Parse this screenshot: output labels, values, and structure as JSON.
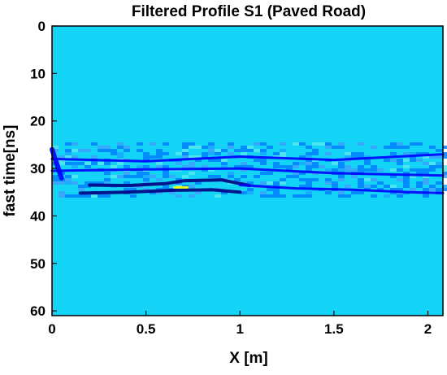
{
  "chart_data": {
    "type": "heatmap",
    "title": "Filtered Profile S1 (Paved Road)",
    "xlabel": "X [m]",
    "ylabel": "fast time[ns]",
    "xlim": [
      0,
      2.08
    ],
    "ylim": [
      61,
      0
    ],
    "y_reversed": true,
    "xticks": [
      0,
      0.5,
      1,
      1.5,
      2
    ],
    "xtick_labels": [
      "0",
      "0.5",
      "1",
      "1.5",
      "2"
    ],
    "yticks": [
      0,
      10,
      20,
      30,
      40,
      50,
      60
    ],
    "ytick_labels": [
      "0",
      "10",
      "20",
      "30",
      "40",
      "50",
      "60"
    ],
    "grid": false,
    "colormap": "jet",
    "background_value_color": "#13d4f7",
    "colorscale": [
      "#00007f",
      "#0000ff",
      "#007fff",
      "#13d4f7",
      "#7fff7f",
      "#ffff00",
      "#ff7f00"
    ],
    "signal_band_ns": [
      24.5,
      36
    ],
    "features": [
      {
        "kind": "dark-reflector",
        "x": [
          0.2,
          0.4,
          0.6,
          0.7,
          0.9,
          1.05
        ],
        "y": [
          33.5,
          33.6,
          33.2,
          32.6,
          32.4,
          33.6
        ]
      },
      {
        "kind": "dark-reflector",
        "x": [
          0.15,
          0.4,
          0.65,
          0.85,
          1.0
        ],
        "y": [
          35.2,
          35.0,
          34.6,
          34.5,
          35.0
        ]
      },
      {
        "kind": "bright-spot",
        "x": [
          0.65,
          0.72
        ],
        "y": [
          34.0,
          34.0
        ]
      },
      {
        "kind": "blue-layer",
        "x": [
          0,
          0.5,
          1.0,
          1.5,
          2.08
        ],
        "y": [
          28.0,
          28.5,
          27.5,
          28.2,
          27.0
        ]
      },
      {
        "kind": "blue-layer",
        "x": [
          0,
          0.5,
          1.0,
          1.5,
          2.08
        ],
        "y": [
          30.5,
          30.2,
          30.0,
          31.0,
          31.5
        ]
      },
      {
        "kind": "blue-layer",
        "x": [
          1.0,
          1.3,
          1.6,
          1.9,
          2.08
        ],
        "y": [
          33.5,
          34.2,
          34.5,
          35.0,
          35.2
        ]
      },
      {
        "kind": "dark-edge",
        "x": [
          0,
          0.05
        ],
        "y": [
          26.0,
          32.0
        ]
      }
    ]
  }
}
